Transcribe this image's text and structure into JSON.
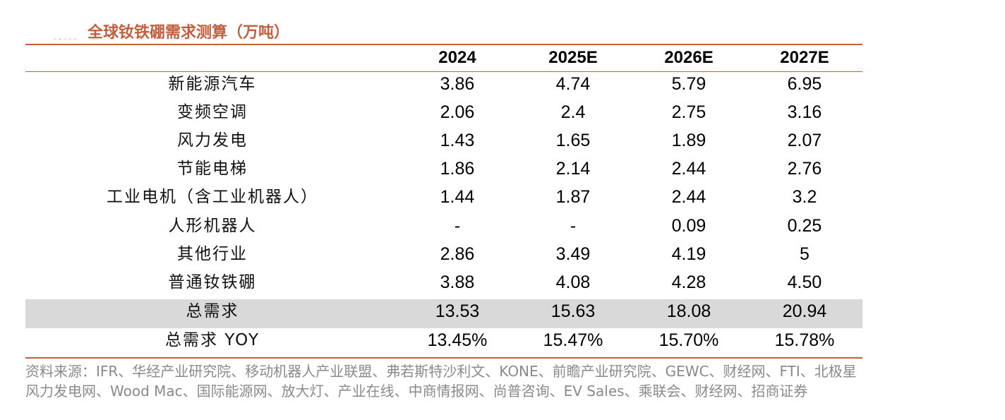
{
  "title": "全球钕铁硼需求测算（万吨）",
  "table": {
    "columns": [
      "2024",
      "2025E",
      "2026E",
      "2027E"
    ],
    "rows": [
      {
        "label": "新能源汽车",
        "values": [
          "3.86",
          "4.74",
          "5.79",
          "6.95"
        ]
      },
      {
        "label": "变频空调",
        "values": [
          "2.06",
          "2.4",
          "2.75",
          "3.16"
        ]
      },
      {
        "label": "风力发电",
        "values": [
          "1.43",
          "1.65",
          "1.89",
          "2.07"
        ]
      },
      {
        "label": "节能电梯",
        "values": [
          "1.86",
          "2.14",
          "2.44",
          "2.76"
        ]
      },
      {
        "label": "工业电机（含工业机器人）",
        "values": [
          "1.44",
          "1.87",
          "2.44",
          "3.2"
        ]
      },
      {
        "label": "人形机器人",
        "values": [
          "-",
          "-",
          "0.09",
          "0.25"
        ]
      },
      {
        "label": "其他行业",
        "values": [
          "2.86",
          "3.49",
          "4.19",
          "5"
        ]
      },
      {
        "label": "普通钕铁硼",
        "values": [
          "3.88",
          "4.08",
          "4.28",
          "4.50"
        ]
      },
      {
        "label": "总需求",
        "values": [
          "13.53",
          "15.63",
          "18.08",
          "20.94"
        ]
      },
      {
        "label": "总需求 YOY",
        "values": [
          "13.45%",
          "15.47%",
          "15.70%",
          "15.78%"
        ]
      }
    ]
  },
  "source": {
    "line1": "资料来源：IFR、华经产业研究院、移动机器人产业联盟、弗若斯特沙利文、KONE、前瞻产业研究院、GEWC、财经网、FTI、北极星",
    "line2": "风力发电网、Wood Mac、国际能源网、放大灯、产业在线、中商情报网、尚普咨询、EV Sales、乘联会、财经网、招商证券"
  },
  "colors": {
    "accent": "#c0603e",
    "highlight_row": "#d9d9d9",
    "source_text": "#8a8a8a"
  }
}
